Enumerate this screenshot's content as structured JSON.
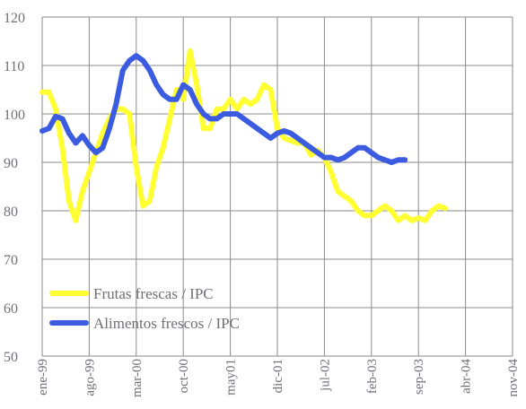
{
  "chart_data": {
    "type": "line",
    "title": "",
    "xlabel": "",
    "ylabel": "",
    "ylim": [
      50,
      120
    ],
    "yticks": [
      50,
      60,
      70,
      80,
      90,
      100,
      110,
      120
    ],
    "xlim": [
      0,
      70
    ],
    "xtick_positions": [
      0,
      7,
      14,
      21,
      28,
      35,
      42,
      49,
      56,
      63,
      70
    ],
    "xtick_labels": [
      "ene-99",
      "ago-99",
      "mar-00",
      "oct-00",
      "may01",
      "dic-01",
      "jul-02",
      "feb-03",
      "sep-03",
      "abr-04",
      "nov-04"
    ],
    "grid": true,
    "legend": "bottom-left",
    "series": [
      {
        "name": "Frutas frescas / IPC",
        "color": "#ffff33",
        "points": [
          [
            0,
            104.5
          ],
          [
            1,
            104.5
          ],
          [
            2,
            101
          ],
          [
            3,
            93
          ],
          [
            4,
            82
          ],
          [
            5,
            78
          ],
          [
            6,
            84
          ],
          [
            7,
            88
          ],
          [
            8,
            92
          ],
          [
            9,
            96
          ],
          [
            10,
            99
          ],
          [
            11,
            101
          ],
          [
            12,
            101
          ],
          [
            13,
            100
          ],
          [
            14,
            89
          ],
          [
            15,
            81
          ],
          [
            16,
            82
          ],
          [
            17,
            89
          ],
          [
            18,
            93
          ],
          [
            19,
            99
          ],
          [
            20,
            105
          ],
          [
            21,
            103
          ],
          [
            22,
            113
          ],
          [
            23,
            106
          ],
          [
            24,
            97
          ],
          [
            25,
            97
          ],
          [
            26,
            101
          ],
          [
            27,
            101
          ],
          [
            28,
            103
          ],
          [
            29,
            101
          ],
          [
            30,
            103
          ],
          [
            31,
            102
          ],
          [
            32,
            103
          ],
          [
            33,
            106
          ],
          [
            34,
            105
          ],
          [
            35,
            97
          ],
          [
            36,
            95
          ],
          [
            37,
            94.5
          ],
          [
            38,
            94
          ],
          [
            39,
            94
          ],
          [
            40,
            91.5
          ],
          [
            41,
            92.5
          ],
          [
            42,
            91
          ],
          [
            43,
            88
          ],
          [
            44,
            84
          ],
          [
            45,
            83
          ],
          [
            46,
            82
          ],
          [
            47,
            80
          ],
          [
            48,
            79
          ],
          [
            49,
            79
          ],
          [
            50,
            80
          ],
          [
            51,
            81
          ],
          [
            52,
            80
          ],
          [
            53,
            78
          ],
          [
            54,
            79
          ],
          [
            55,
            78
          ],
          [
            56,
            78.5
          ],
          [
            57,
            78
          ],
          [
            58,
            80
          ],
          [
            59,
            81
          ],
          [
            60,
            80.5
          ]
        ]
      },
      {
        "name": "Alimentos frescos / IPC",
        "color": "#3b5be0",
        "points": [
          [
            0,
            96.5
          ],
          [
            1,
            97
          ],
          [
            2,
            99.5
          ],
          [
            3,
            99
          ],
          [
            4,
            96
          ],
          [
            5,
            94
          ],
          [
            6,
            95.5
          ],
          [
            7,
            93.5
          ],
          [
            8,
            92
          ],
          [
            9,
            93
          ],
          [
            10,
            97
          ],
          [
            11,
            102
          ],
          [
            12,
            109
          ],
          [
            13,
            111
          ],
          [
            14,
            112
          ],
          [
            15,
            111
          ],
          [
            16,
            109
          ],
          [
            17,
            106
          ],
          [
            18,
            104
          ],
          [
            19,
            103
          ],
          [
            20,
            103
          ],
          [
            21,
            106
          ],
          [
            22,
            105
          ],
          [
            23,
            102
          ],
          [
            24,
            100
          ],
          [
            25,
            99
          ],
          [
            26,
            99
          ],
          [
            27,
            100
          ],
          [
            28,
            100
          ],
          [
            29,
            100
          ],
          [
            30,
            99
          ],
          [
            31,
            98
          ],
          [
            32,
            97
          ],
          [
            33,
            96
          ],
          [
            34,
            95
          ],
          [
            35,
            96
          ],
          [
            36,
            96.5
          ],
          [
            37,
            96
          ],
          [
            38,
            95
          ],
          [
            39,
            94
          ],
          [
            40,
            93
          ],
          [
            41,
            92
          ],
          [
            42,
            91
          ],
          [
            43,
            91
          ],
          [
            44,
            90.5
          ],
          [
            45,
            91
          ],
          [
            46,
            92
          ],
          [
            47,
            93
          ],
          [
            48,
            93
          ],
          [
            49,
            92
          ],
          [
            50,
            91
          ],
          [
            51,
            90.5
          ],
          [
            52,
            90
          ],
          [
            53,
            90.5
          ],
          [
            54,
            90.5
          ]
        ]
      }
    ]
  }
}
